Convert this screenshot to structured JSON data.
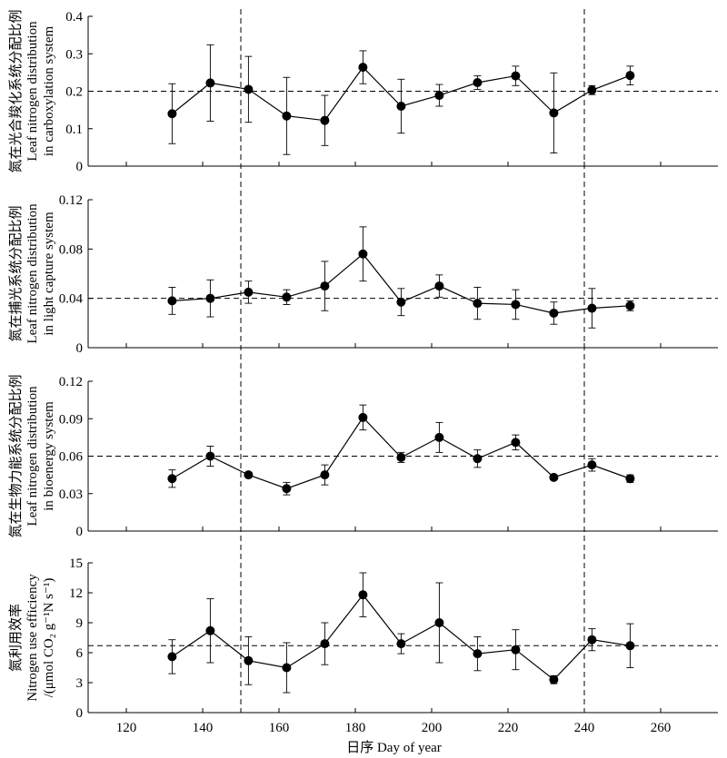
{
  "xaxis": {
    "label": "日序 Day of year",
    "xlim": [
      110,
      275
    ],
    "ticks": [
      120,
      140,
      160,
      180,
      200,
      220,
      240,
      260
    ],
    "tick_labels": [
      "120",
      "140",
      "160",
      "180",
      "200",
      "220",
      "240",
      "260"
    ],
    "vlines": [
      150,
      240
    ]
  },
  "chart_data": [
    {
      "type": "line",
      "ylabel": [
        "氮在光合羧化系统分配比例",
        "Leaf nitrogen distribution",
        "in carboxylation system"
      ],
      "ylim": [
        0,
        0.4
      ],
      "yticks": [
        0,
        0.1,
        0.2,
        0.3,
        0.4
      ],
      "ytick_labels": [
        "0",
        "0.1",
        "0.2",
        "0.3",
        "0.4"
      ],
      "hline": 0.2,
      "x": [
        132,
        142,
        152,
        162,
        172,
        182,
        192,
        202,
        212,
        222,
        232,
        242,
        252
      ],
      "y": [
        0.14,
        0.222,
        0.205,
        0.134,
        0.122,
        0.264,
        0.16,
        0.189,
        0.223,
        0.241,
        0.142,
        0.203,
        0.242
      ],
      "err": [
        0.08,
        0.102,
        0.088,
        0.103,
        0.067,
        0.044,
        0.072,
        0.029,
        0.018,
        0.026,
        0.107,
        0.012,
        0.025
      ]
    },
    {
      "type": "line",
      "ylabel": [
        "氮在捕光系统分配比例",
        "Leaf nitrogen distribution",
        "in light capture system"
      ],
      "ylim": [
        0,
        0.12
      ],
      "yticks": [
        0,
        0.04,
        0.08,
        0.12
      ],
      "ytick_labels": [
        "0",
        "0.04",
        "0.08",
        "0.12"
      ],
      "hline": 0.04,
      "x": [
        132,
        142,
        152,
        162,
        172,
        182,
        192,
        202,
        212,
        222,
        232,
        242,
        252
      ],
      "y": [
        0.038,
        0.04,
        0.045,
        0.041,
        0.05,
        0.076,
        0.037,
        0.05,
        0.036,
        0.035,
        0.028,
        0.032,
        0.034
      ],
      "err": [
        0.011,
        0.015,
        0.009,
        0.006,
        0.02,
        0.022,
        0.011,
        0.009,
        0.013,
        0.012,
        0.009,
        0.016,
        0.004
      ]
    },
    {
      "type": "line",
      "ylabel": [
        "氮在生物力能系统分配比例",
        "Leaf nitrogen distribution",
        "in bioenergy system"
      ],
      "ylim": [
        0,
        0.12
      ],
      "yticks": [
        0,
        0.03,
        0.06,
        0.09,
        0.12
      ],
      "ytick_labels": [
        "0",
        "0.03",
        "0.06",
        "0.09",
        "0.12"
      ],
      "hline": 0.06,
      "x": [
        132,
        142,
        152,
        162,
        172,
        182,
        192,
        202,
        212,
        222,
        232,
        242,
        252
      ],
      "y": [
        0.042,
        0.06,
        0.045,
        0.034,
        0.045,
        0.091,
        0.059,
        0.075,
        0.058,
        0.071,
        0.043,
        0.053,
        0.042
      ],
      "err": [
        0.007,
        0.008,
        0.002,
        0.005,
        0.008,
        0.01,
        0.004,
        0.012,
        0.007,
        0.006,
        0.002,
        0.005,
        0.003
      ]
    },
    {
      "type": "line",
      "ylabel": [
        "氮利用效率",
        "Nitrogen use efficiency",
        "/(μmol CO₂ g⁻¹N s⁻¹)"
      ],
      "ylim": [
        0,
        15
      ],
      "yticks": [
        0,
        3,
        6,
        9,
        12,
        15
      ],
      "ytick_labels": [
        "0",
        "3",
        "6",
        "9",
        "12",
        "15"
      ],
      "hline": 6.7,
      "x": [
        132,
        142,
        152,
        162,
        172,
        182,
        192,
        202,
        212,
        222,
        232,
        242,
        252
      ],
      "y": [
        5.6,
        8.2,
        5.2,
        4.5,
        6.9,
        11.8,
        6.9,
        9.0,
        5.9,
        6.3,
        3.3,
        7.3,
        6.7
      ],
      "err": [
        1.7,
        3.2,
        2.4,
        2.5,
        2.1,
        2.2,
        1.0,
        4.0,
        1.7,
        2.0,
        0.4,
        1.1,
        2.2
      ]
    }
  ]
}
